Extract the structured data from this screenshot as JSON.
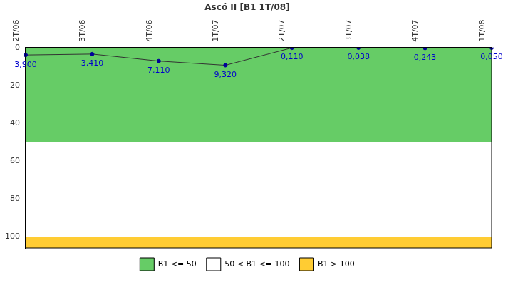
{
  "chart_data": {
    "type": "line",
    "title": "Ascó II [B1 1T/08]",
    "categories": [
      "2T/06",
      "3T/06",
      "4T/06",
      "1T/07",
      "2T/07",
      "3T/07",
      "4T/07",
      "1T/08"
    ],
    "values": [
      3.9,
      3.41,
      7.11,
      9.32,
      0.11,
      0.038,
      0.243,
      0.05
    ],
    "value_labels": [
      "3,900",
      "3,410",
      "7,110",
      "9,320",
      "0,110",
      "0,038",
      "0,243",
      "0,050"
    ],
    "color": "#333333",
    "marker": "circle",
    "data_labels": true,
    "ylim": [
      0,
      106
    ],
    "yticks": [
      0,
      20,
      40,
      60,
      80,
      100
    ],
    "grid": false,
    "legend": "bottom",
    "bands": [
      {
        "label": "B1 <= 50",
        "from": 0,
        "to": 50,
        "color": "#66cc66"
      },
      {
        "label": "50 < B1 <= 100",
        "from": 50,
        "to": 100,
        "color": "#ffffff"
      },
      {
        "label": "B1 > 100",
        "from": 100,
        "to": 106,
        "color": "#ffcc33"
      }
    ]
  }
}
